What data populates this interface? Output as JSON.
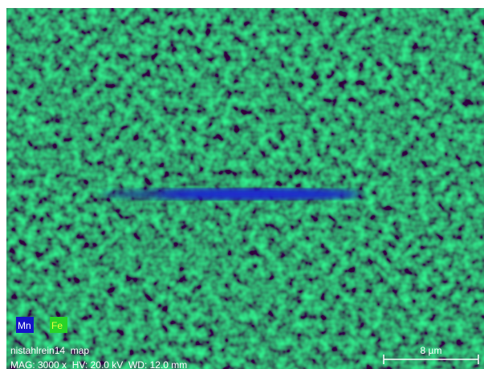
{
  "legend": [
    {
      "label": "Mn"
    },
    {
      "label": "Fe"
    }
  ],
  "caption": {
    "title": "nistahlrein14  map",
    "parameters": "MAG: 3000 x  HV: 20.0 kV  WD: 12.0 mm"
  },
  "scale_bar": {
    "label": "8 µm"
  }
}
